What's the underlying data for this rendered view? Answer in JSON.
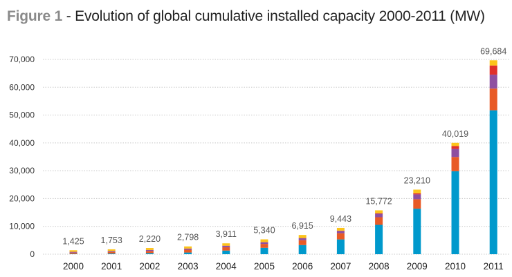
{
  "chart_data": {
    "type": "bar",
    "stacked": true,
    "title_prefix": "Figure 1",
    "title": " - Evolution of global cumulative installed capacity 2000-2011 (MW)",
    "xlabel": "",
    "ylabel": "",
    "ylim": [
      0,
      70000
    ],
    "yticks": [
      0,
      10000,
      20000,
      30000,
      40000,
      50000,
      60000,
      70000
    ],
    "ytick_labels": [
      "0",
      "10,000",
      "20,000",
      "30,000",
      "40,000",
      "50,000",
      "60,000",
      "70,000"
    ],
    "grid": "horizontal dotted",
    "legend": "none",
    "categories": [
      "2000",
      "2001",
      "2002",
      "2003",
      "2004",
      "2005",
      "2006",
      "2007",
      "2008",
      "2009",
      "2010",
      "2011"
    ],
    "totals": [
      1425,
      1753,
      2220,
      2798,
      3911,
      5340,
      6915,
      9443,
      15772,
      23210,
      40019,
      69684
    ],
    "total_labels": [
      "1,425",
      "1,753",
      "2,220",
      "2,798",
      "3,911",
      "5,340",
      "6,915",
      "9,443",
      "15,772",
      "23,210",
      "40,019",
      "69,684"
    ],
    "series": [
      {
        "color": "#0099cc",
        "values": [
          129,
          265,
          399,
          601,
          1305,
          2289,
          3281,
          5310,
          10554,
          16357,
          29828,
          51716
        ]
      },
      {
        "color": "#e85a26",
        "values": [
          450,
          550,
          750,
          1000,
          1200,
          1400,
          1740,
          2230,
          2730,
          3400,
          5100,
          7800
        ]
      },
      {
        "color": "#8e4fa0",
        "values": [
          260,
          300,
          350,
          400,
          500,
          600,
          740,
          830,
          1240,
          1740,
          2900,
          5000
        ]
      },
      {
        "color": "#e0302a",
        "values": [
          20,
          30,
          40,
          50,
          60,
          80,
          80,
          100,
          200,
          400,
          1070,
          3300
        ]
      },
      {
        "color": "#fcc41a",
        "values": [
          566,
          608,
          681,
          747,
          846,
          971,
          1074,
          973,
          1048,
          1313,
          1121,
          1868
        ]
      }
    ]
  }
}
